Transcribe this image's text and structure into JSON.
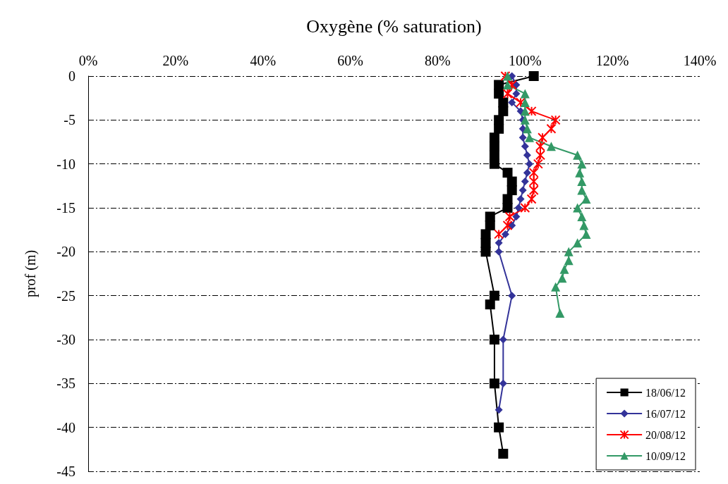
{
  "chart_data": {
    "type": "line",
    "xlabel": "Oxygène (% saturation)",
    "ylabel": "prof (m)",
    "xlim": [
      0,
      140
    ],
    "xticks": [
      {
        "value": 0,
        "label": "0%"
      },
      {
        "value": 20,
        "label": "20%"
      },
      {
        "value": 40,
        "label": "40%"
      },
      {
        "value": 60,
        "label": "60%"
      },
      {
        "value": 80,
        "label": "80%"
      },
      {
        "value": 100,
        "label": "100%"
      },
      {
        "value": 120,
        "label": "120%"
      },
      {
        "value": 140,
        "label": "140%"
      }
    ],
    "ylim": [
      -45,
      0
    ],
    "yticks": [
      -45,
      -40,
      -35,
      -30,
      -25,
      -20,
      -15,
      -10,
      -5,
      0
    ],
    "grid": "y",
    "legend": "bottom right",
    "line_style": "solid",
    "series": [
      {
        "name": "18/06/12",
        "color": "#000000",
        "marker": "square",
        "x": [
          102,
          94,
          94,
          95,
          95,
          94,
          94,
          93,
          93,
          93,
          93,
          96,
          97,
          97,
          96,
          96,
          92,
          92,
          91,
          91,
          91,
          93,
          92,
          93,
          93,
          94,
          95
        ],
        "values": [
          0,
          -1,
          -2,
          -3,
          -4,
          -5,
          -6,
          -7,
          -8,
          -9,
          -10,
          -11,
          -12,
          -13,
          -14,
          -15,
          -16,
          -17,
          -18,
          -19,
          -20,
          -25,
          -26,
          -30,
          -35,
          -40,
          -43
        ]
      },
      {
        "name": "16/07/12",
        "color": "#333399",
        "marker": "diamond",
        "x": [
          97,
          98,
          98,
          97,
          99,
          99.5,
          99.5,
          99.5,
          100,
          100.5,
          101,
          100.5,
          100,
          99.5,
          99,
          98.5,
          98,
          97,
          95.5,
          94,
          94,
          97,
          95,
          95,
          94
        ],
        "values": [
          0,
          -1,
          -2,
          -3,
          -4,
          -5,
          -6,
          -7,
          -8,
          -9,
          -10,
          -11,
          -12,
          -13,
          -14,
          -15,
          -16,
          -17,
          -18,
          -19,
          -20,
          -25,
          -30,
          -35,
          -38
        ]
      },
      {
        "name": "20/08/12",
        "color": "#ff0000",
        "marker": "cross",
        "x": [
          95.5,
          97,
          96,
          99,
          101.5,
          107,
          106,
          104,
          103.5,
          103.5,
          103,
          102,
          102,
          102,
          101.5,
          100,
          96.5,
          96,
          94
        ],
        "values": [
          0,
          -1,
          -2,
          -3,
          -4,
          -5,
          -6,
          -7,
          -8,
          -9,
          -10,
          -11,
          -12,
          -13,
          -14,
          -15,
          -16,
          -17,
          -18
        ]
      },
      {
        "name": "10/09/12",
        "color": "#339966",
        "marker": "triangle",
        "x": [
          96,
          96,
          100,
          100,
          100,
          100,
          100.5,
          101,
          106,
          112,
          113,
          112.5,
          113,
          113,
          114,
          112,
          113,
          113.5,
          114,
          112,
          110,
          110,
          109,
          108.5,
          107,
          108
        ],
        "values": [
          0,
          -1,
          -2,
          -3,
          -4,
          -5,
          -6,
          -7,
          -8,
          -9,
          -10,
          -11,
          -12,
          -13,
          -14,
          -15,
          -16,
          -17,
          -18,
          -19,
          -20,
          -21,
          -22,
          -23,
          -24,
          -27
        ]
      }
    ]
  }
}
